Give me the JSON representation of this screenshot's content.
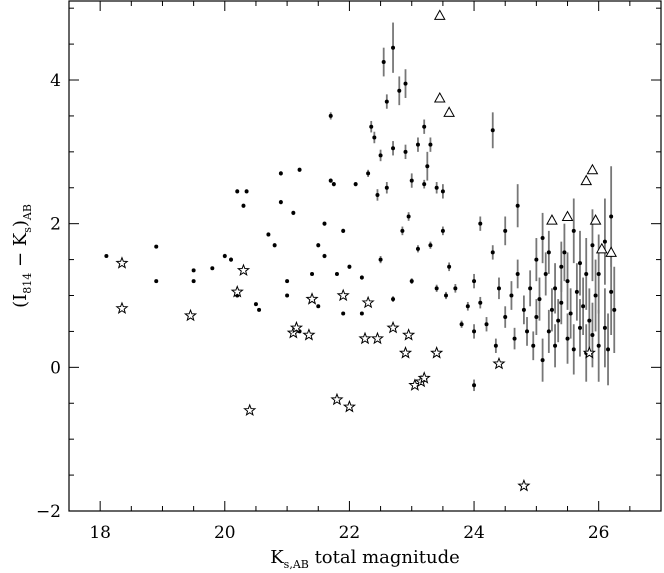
{
  "chart_data": {
    "type": "scatter",
    "title": "",
    "xlabel": {
      "main": "K",
      "sub": "s,AB",
      "rest": " total magnitude"
    },
    "ylabel": {
      "open": "(I",
      "sub1": "814",
      "mid": " − K",
      "sub2": "s",
      "close": ")",
      "sub3": "AB"
    },
    "xlim": [
      17.5,
      27.0
    ],
    "ylim": [
      -2.0,
      5.1
    ],
    "xticks": [
      18,
      20,
      22,
      24,
      26
    ],
    "xtick_labels": [
      "18",
      "20",
      "22",
      "24",
      "26"
    ],
    "yticks": [
      -2,
      0,
      2,
      4
    ],
    "ytick_labels": [
      "−2",
      "0",
      "2",
      "4"
    ],
    "grid": false,
    "legend": "none",
    "colors": {
      "points": "#000000",
      "errorbars": "#777777",
      "frame": "#000000"
    },
    "series": [
      {
        "marker": "dot",
        "with_error_bars": true,
        "points": [
          [
            18.1,
            1.55,
            0.02
          ],
          [
            18.9,
            1.68,
            0.02
          ],
          [
            18.9,
            1.2,
            0.02
          ],
          [
            19.5,
            1.35,
            0.02
          ],
          [
            19.5,
            1.2,
            0.02
          ],
          [
            19.8,
            1.38,
            0.02
          ],
          [
            20.0,
            1.55,
            0.03
          ],
          [
            20.1,
            1.5,
            0.03
          ],
          [
            20.2,
            2.45,
            0.03
          ],
          [
            20.3,
            2.25,
            0.03
          ],
          [
            20.35,
            2.45,
            0.03
          ],
          [
            20.2,
            1.0,
            0.02
          ],
          [
            20.5,
            0.88,
            0.02
          ],
          [
            20.55,
            0.8,
            0.02
          ],
          [
            20.7,
            1.85,
            0.03
          ],
          [
            20.8,
            1.7,
            0.03
          ],
          [
            20.9,
            2.7,
            0.03
          ],
          [
            20.9,
            2.3,
            0.03
          ],
          [
            21.0,
            1.2,
            0.02
          ],
          [
            21.0,
            1.0,
            0.02
          ],
          [
            21.1,
            2.15,
            0.03
          ],
          [
            21.2,
            2.75,
            0.03
          ],
          [
            21.2,
            0.5,
            0.02
          ],
          [
            21.4,
            1.3,
            0.02
          ],
          [
            21.5,
            1.7,
            0.03
          ],
          [
            21.5,
            0.85,
            0.02
          ],
          [
            21.6,
            2.0,
            0.03
          ],
          [
            21.6,
            1.55,
            0.03
          ],
          [
            21.7,
            2.6,
            0.03
          ],
          [
            21.7,
            3.5,
            0.05
          ],
          [
            21.75,
            2.55,
            0.03
          ],
          [
            21.8,
            1.3,
            0.02
          ],
          [
            21.9,
            1.9,
            0.03
          ],
          [
            21.9,
            0.75,
            0.02
          ],
          [
            22.0,
            1.4,
            0.03
          ],
          [
            22.1,
            2.55,
            0.03
          ],
          [
            22.2,
            1.25,
            0.03
          ],
          [
            22.2,
            0.75,
            0.02
          ],
          [
            22.3,
            2.7,
            0.05
          ],
          [
            22.35,
            3.35,
            0.08
          ],
          [
            22.4,
            3.2,
            0.08
          ],
          [
            22.45,
            2.4,
            0.08
          ],
          [
            22.5,
            2.95,
            0.08
          ],
          [
            22.5,
            1.5,
            0.05
          ],
          [
            22.55,
            4.25,
            0.2
          ],
          [
            22.6,
            3.7,
            0.1
          ],
          [
            22.6,
            2.5,
            0.08
          ],
          [
            22.7,
            4.45,
            0.35
          ],
          [
            22.7,
            3.05,
            0.1
          ],
          [
            22.7,
            0.95,
            0.04
          ],
          [
            22.8,
            3.85,
            0.2
          ],
          [
            22.85,
            1.9,
            0.06
          ],
          [
            22.9,
            3.95,
            0.2
          ],
          [
            22.9,
            3.0,
            0.1
          ],
          [
            22.95,
            2.1,
            0.06
          ],
          [
            23.0,
            2.6,
            0.1
          ],
          [
            23.0,
            1.2,
            0.04
          ],
          [
            23.1,
            3.1,
            0.1
          ],
          [
            23.1,
            1.65,
            0.05
          ],
          [
            23.2,
            3.35,
            0.1
          ],
          [
            23.2,
            2.55,
            0.06
          ],
          [
            23.25,
            2.8,
            0.2
          ],
          [
            23.3,
            3.1,
            0.1
          ],
          [
            23.3,
            1.7,
            0.05
          ],
          [
            23.4,
            2.5,
            0.08
          ],
          [
            23.4,
            1.1,
            0.05
          ],
          [
            23.5,
            2.45,
            0.1
          ],
          [
            23.5,
            1.9,
            0.06
          ],
          [
            23.55,
            1.0,
            0.05
          ],
          [
            23.6,
            1.4,
            0.06
          ],
          [
            23.7,
            1.1,
            0.06
          ],
          [
            23.8,
            0.6,
            0.05
          ],
          [
            23.9,
            0.85,
            0.06
          ],
          [
            24.0,
            0.5,
            0.1
          ],
          [
            24.0,
            1.2,
            0.1
          ],
          [
            24.1,
            2.0,
            0.1
          ],
          [
            24.1,
            0.9,
            0.08
          ],
          [
            24.2,
            0.6,
            0.1
          ],
          [
            24.3,
            3.3,
            0.25
          ],
          [
            24.3,
            1.6,
            0.1
          ],
          [
            24.35,
            0.3,
            0.1
          ],
          [
            24.4,
            1.1,
            0.15
          ],
          [
            24.5,
            0.7,
            0.15
          ],
          [
            24.5,
            1.9,
            0.2
          ],
          [
            24.6,
            1.0,
            0.2
          ],
          [
            24.65,
            0.4,
            0.15
          ],
          [
            24.7,
            2.25,
            0.3
          ],
          [
            24.7,
            1.3,
            0.2
          ],
          [
            24.8,
            0.8,
            0.2
          ],
          [
            24.85,
            0.5,
            0.2
          ],
          [
            24.9,
            1.1,
            0.25
          ],
          [
            24.95,
            0.3,
            0.2
          ],
          [
            25.0,
            1.5,
            0.3
          ],
          [
            25.0,
            0.7,
            0.25
          ],
          [
            25.05,
            0.95,
            0.3
          ],
          [
            25.1,
            0.1,
            0.3
          ],
          [
            25.1,
            1.8,
            0.35
          ],
          [
            25.15,
            1.3,
            0.3
          ],
          [
            25.2,
            0.5,
            0.3
          ],
          [
            25.2,
            1.6,
            0.3
          ],
          [
            25.25,
            0.8,
            0.3
          ],
          [
            25.3,
            1.1,
            0.35
          ],
          [
            25.3,
            0.3,
            0.3
          ],
          [
            25.35,
            0.65,
            0.3
          ],
          [
            25.4,
            1.4,
            0.35
          ],
          [
            25.4,
            0.9,
            0.3
          ],
          [
            25.45,
            1.6,
            0.4
          ],
          [
            25.5,
            0.4,
            0.35
          ],
          [
            25.5,
            1.2,
            0.4
          ],
          [
            25.55,
            0.75,
            0.35
          ],
          [
            25.6,
            1.9,
            0.45
          ],
          [
            25.6,
            0.25,
            0.35
          ],
          [
            25.65,
            1.05,
            0.4
          ],
          [
            25.7,
            0.55,
            0.4
          ],
          [
            25.7,
            1.45,
            0.45
          ],
          [
            25.75,
            0.85,
            0.4
          ],
          [
            25.8,
            0.2,
            0.4
          ],
          [
            25.8,
            1.3,
            0.5
          ],
          [
            25.85,
            0.65,
            0.45
          ],
          [
            25.9,
            1.7,
            0.5
          ],
          [
            25.9,
            0.45,
            0.45
          ],
          [
            25.95,
            1.0,
            0.5
          ],
          [
            26.0,
            0.3,
            0.5
          ],
          [
            26.0,
            1.3,
            0.55
          ],
          [
            26.1,
            0.55,
            0.55
          ],
          [
            26.1,
            1.75,
            0.6
          ],
          [
            26.15,
            0.25,
            0.5
          ],
          [
            26.2,
            1.05,
            0.6
          ],
          [
            26.2,
            2.1,
            0.7
          ],
          [
            26.25,
            0.8,
            0.6
          ],
          [
            24.0,
            -0.25,
            0.08
          ]
        ]
      },
      {
        "marker": "star",
        "points": [
          [
            18.35,
            1.45
          ],
          [
            18.35,
            0.82
          ],
          [
            19.45,
            0.72
          ],
          [
            20.2,
            1.05
          ],
          [
            20.3,
            1.35
          ],
          [
            20.4,
            -0.6
          ],
          [
            21.1,
            0.48
          ],
          [
            21.15,
            0.55
          ],
          [
            21.35,
            0.45
          ],
          [
            21.4,
            0.95
          ],
          [
            21.8,
            -0.45
          ],
          [
            21.9,
            1.0
          ],
          [
            22.0,
            -0.55
          ],
          [
            22.25,
            0.4
          ],
          [
            22.3,
            0.9
          ],
          [
            22.45,
            0.4
          ],
          [
            22.7,
            0.55
          ],
          [
            22.9,
            0.2
          ],
          [
            22.95,
            0.45
          ],
          [
            23.05,
            -0.25
          ],
          [
            23.15,
            -0.2
          ],
          [
            23.2,
            -0.15
          ],
          [
            23.4,
            0.2
          ],
          [
            24.4,
            0.05
          ],
          [
            24.8,
            -1.65
          ],
          [
            25.85,
            0.2
          ]
        ]
      },
      {
        "marker": "triangle",
        "points": [
          [
            23.45,
            4.9
          ],
          [
            23.45,
            3.75
          ],
          [
            23.6,
            3.55
          ],
          [
            25.25,
            2.05
          ],
          [
            25.5,
            2.1
          ],
          [
            25.8,
            2.6
          ],
          [
            25.9,
            2.75
          ],
          [
            25.95,
            2.05
          ],
          [
            26.05,
            1.65
          ],
          [
            26.2,
            1.6
          ]
        ]
      }
    ]
  }
}
